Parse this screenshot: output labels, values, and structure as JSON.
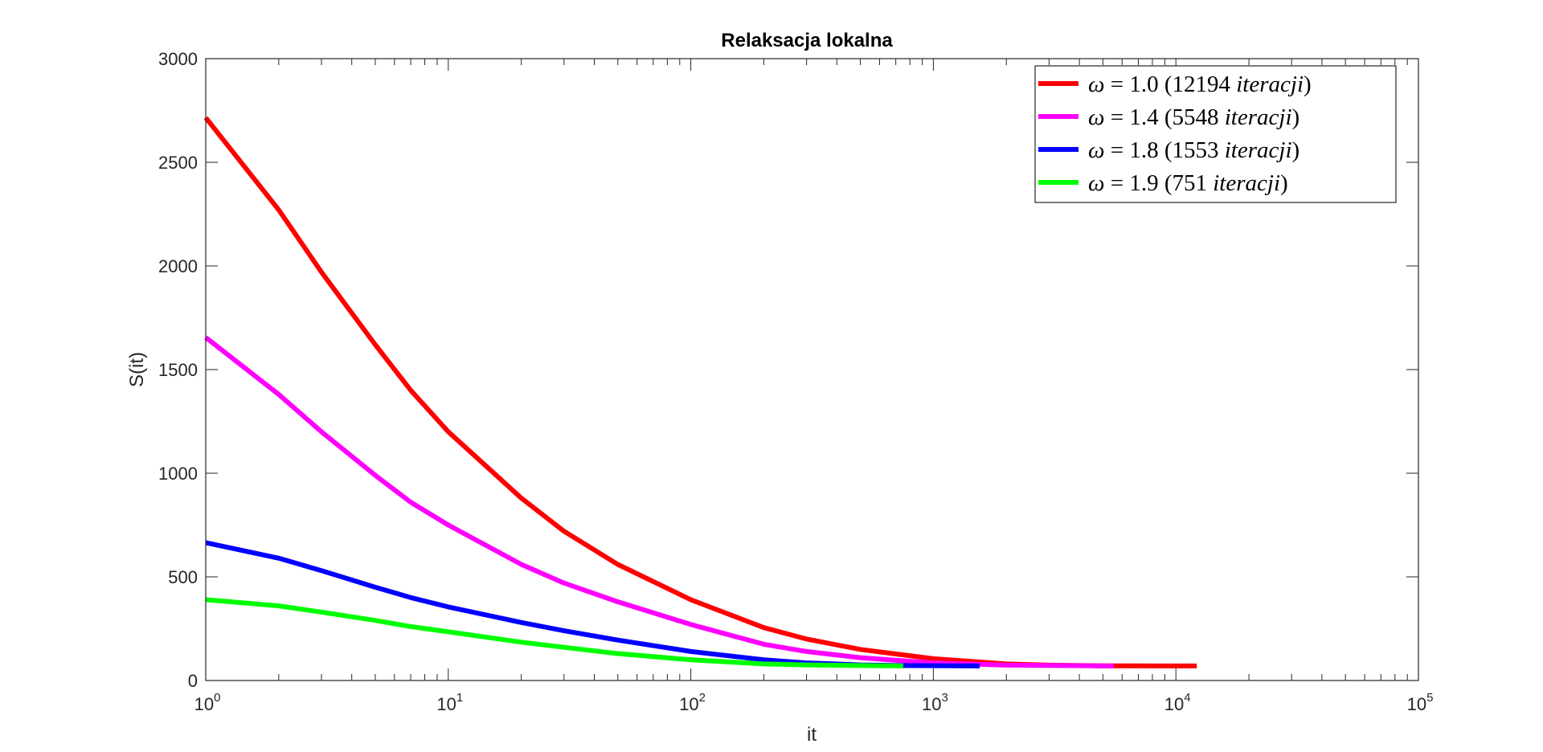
{
  "chart_data": {
    "type": "line",
    "title": "Relaksacja lokalna",
    "xlabel": "it",
    "ylabel": "S(it)",
    "xscale": "log",
    "xlim": [
      1,
      100000
    ],
    "ylim": [
      0,
      3000
    ],
    "yticks": [
      "0",
      "500",
      "1000",
      "1500",
      "2000",
      "2500",
      "3000"
    ],
    "xticks": [
      {
        "base": "10",
        "exp": "0"
      },
      {
        "base": "10",
        "exp": "1"
      },
      {
        "base": "10",
        "exp": "2"
      },
      {
        "base": "10",
        "exp": "3"
      },
      {
        "base": "10",
        "exp": "4"
      },
      {
        "base": "10",
        "exp": "5"
      }
    ],
    "grid": false,
    "legend_position": "top-right",
    "series": [
      {
        "name": "ω = 1.0  (12194 iteracji)",
        "legend": {
          "omega": "1.0",
          "count": "12194",
          "word": "iteracji"
        },
        "color": "#ff0000",
        "x": [
          1,
          2,
          3,
          5,
          7,
          10,
          20,
          30,
          50,
          100,
          200,
          300,
          500,
          1000,
          2000,
          3000,
          5000,
          12194
        ],
        "y": [
          2715,
          2270,
          1970,
          1620,
          1400,
          1200,
          880,
          720,
          560,
          390,
          255,
          200,
          150,
          105,
          80,
          74,
          71,
          70
        ]
      },
      {
        "name": "ω = 1.4  (5548 iteracji)",
        "legend": {
          "omega": "1.4",
          "count": "5548",
          "word": "iteracji"
        },
        "color": "#ff00ff",
        "x": [
          1,
          2,
          3,
          5,
          7,
          10,
          20,
          30,
          50,
          100,
          200,
          300,
          500,
          1000,
          2000,
          5548
        ],
        "y": [
          1655,
          1380,
          1200,
          990,
          860,
          750,
          560,
          470,
          380,
          270,
          175,
          140,
          110,
          85,
          74,
          70
        ]
      },
      {
        "name": "ω = 1.8  (1553 iteracji)",
        "legend": {
          "omega": "1.8",
          "count": "1553",
          "word": "iteracji"
        },
        "color": "#0000ff",
        "x": [
          1,
          2,
          3,
          5,
          7,
          10,
          20,
          30,
          50,
          100,
          200,
          300,
          500,
          750,
          1553
        ],
        "y": [
          665,
          590,
          530,
          450,
          400,
          355,
          280,
          240,
          195,
          140,
          100,
          85,
          75,
          72,
          70
        ]
      },
      {
        "name": "ω = 1.9  (751 iteracji)",
        "legend": {
          "omega": "1.9",
          "count": "751",
          "word": "iteracji"
        },
        "color": "#00ff00",
        "x": [
          1,
          2,
          3,
          5,
          7,
          10,
          20,
          30,
          50,
          100,
          200,
          300,
          500,
          751
        ],
        "y": [
          390,
          360,
          330,
          290,
          260,
          235,
          185,
          160,
          130,
          100,
          80,
          75,
          72,
          70
        ]
      }
    ]
  }
}
